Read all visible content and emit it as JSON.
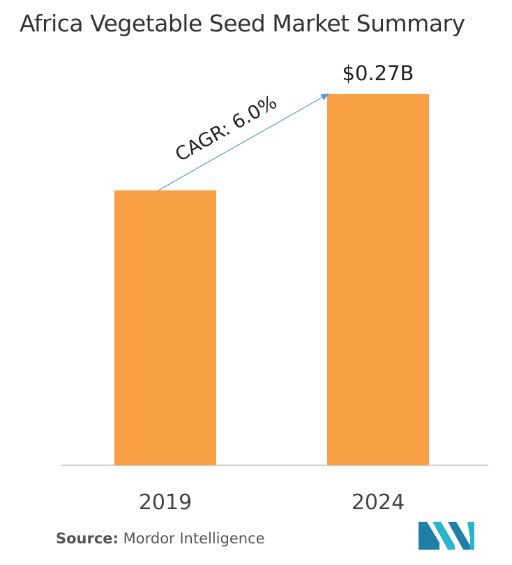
{
  "title": "Africa Vegetable Seed Market Summary",
  "source": {
    "label": "Source:",
    "text": "Mordor Intelligence"
  },
  "chart_data": {
    "type": "bar",
    "categories": [
      "2019",
      "2024"
    ],
    "values": [
      0.2,
      0.27
    ],
    "data_labels": [
      "",
      "$0.27B"
    ],
    "annotation": "CAGR: 6.0%",
    "bar_color": "#F9A045",
    "axis_color": "#BFBFBF",
    "arrow_color": "#5B9BD5",
    "ylim": [
      0,
      0.27
    ]
  },
  "logo": {
    "name": "Mordor Intelligence logo",
    "colors": [
      "#1F7FA8",
      "#27B7C9"
    ]
  }
}
